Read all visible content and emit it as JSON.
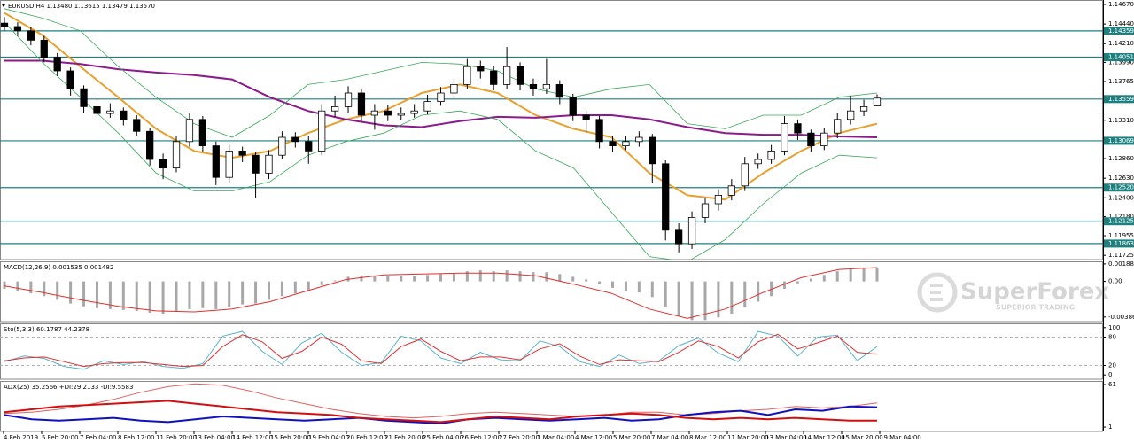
{
  "chart_data": [
    {
      "type": "candlestick",
      "title": "EURUSD,H4  1.13480 1.13615 1.13479 1.13570",
      "ylim": [
        1.116748,
        1.14722
      ],
      "yticks": [
        {
          "value": 1.1467,
          "label": "1.14670"
        },
        {
          "value": 1.1444,
          "label": "1.14440"
        },
        {
          "value": 1.1421,
          "label": "1.14210"
        },
        {
          "value": 1.1399,
          "label": "1.13990"
        },
        1.13765,
        {
          "value": 1.1331,
          "label": "1.13310"
        },
        {
          "value": 1.1286,
          "label": "1.12860"
        },
        {
          "value": 1.1263,
          "label": "1.12630"
        },
        {
          "value": 1.124,
          "label": "1.12400"
        },
        {
          "value": 1.1218,
          "label": "1.12180"
        },
        1.11955,
        1.11725
      ],
      "levels": [
        1.14359,
        1.14051,
        1.13559,
        1.13069,
        {
          "value": 1.1252,
          "label": "1.12520"
        },
        1.12125,
        1.11863
      ],
      "level_color": "#1f7f7f",
      "open": [
        1.1445,
        1.1441,
        1.1436,
        1.1425,
        1.1405,
        1.1389,
        1.1368,
        1.1347,
        1.1339,
        1.1342,
        1.1332,
        1.1318,
        1.1285,
        1.1275,
        1.1306,
        1.1332,
        1.1301,
        1.1264,
        1.1295,
        1.129,
        1.1269,
        1.129,
        1.1311,
        1.1306,
        1.1295,
        1.1342,
        1.1347,
        1.1363,
        1.1337,
        1.1342,
        1.1337,
        1.1339,
        1.1342,
        1.1353,
        1.1363,
        1.1373,
        1.1394,
        1.1389,
        1.1373,
        1.1394,
        1.1373,
        1.1368,
        1.1373,
        1.1358,
        1.1337,
        1.1332,
        1.1306,
        1.1301,
        1.1306,
        1.1311,
        1.128,
        1.1202,
        1.1186,
        1.1217,
        1.1233,
        1.1243,
        1.1254,
        1.128,
        1.1285,
        1.1295,
        1.1327,
        1.1316,
        1.1301,
        1.1316,
        1.1332,
        1.1342,
        1.1348
      ],
      "high": [
        1.1452,
        1.1446,
        1.144,
        1.143,
        1.141,
        1.1393,
        1.1372,
        1.1358,
        1.1351,
        1.1346,
        1.1337,
        1.1322,
        1.1292,
        1.1312,
        1.134,
        1.1336,
        1.1306,
        1.1302,
        1.13,
        1.1294,
        1.1296,
        1.1318,
        1.1317,
        1.1312,
        1.135,
        1.136,
        1.1371,
        1.1368,
        1.135,
        1.1349,
        1.1346,
        1.135,
        1.1361,
        1.137,
        1.138,
        1.1403,
        1.1401,
        1.1395,
        1.1417,
        1.1399,
        1.138,
        1.1403,
        1.1378,
        1.1362,
        1.1342,
        1.1336,
        1.1312,
        1.1313,
        1.1318,
        1.1315,
        1.1284,
        1.121,
        1.1224,
        1.124,
        1.125,
        1.1262,
        1.1288,
        1.1292,
        1.1302,
        1.1336,
        1.1332,
        1.132,
        1.1322,
        1.134,
        1.136,
        1.1355,
        1.13615
      ],
      "low": [
        1.1436,
        1.143,
        1.1419,
        1.1399,
        1.1383,
        1.136,
        1.134,
        1.1333,
        1.1334,
        1.1325,
        1.1312,
        1.1278,
        1.1262,
        1.127,
        1.13,
        1.1294,
        1.1255,
        1.1258,
        1.1282,
        1.124,
        1.1262,
        1.1285,
        1.1299,
        1.128,
        1.129,
        1.1335,
        1.134,
        1.133,
        1.132,
        1.133,
        1.1331,
        1.1334,
        1.1338,
        1.1348,
        1.1357,
        1.1368,
        1.138,
        1.1366,
        1.1368,
        1.1366,
        1.136,
        1.1362,
        1.135,
        1.133,
        1.1316,
        1.1298,
        1.1294,
        1.1296,
        1.13,
        1.1258,
        1.119,
        1.1176,
        1.118,
        1.121,
        1.1225,
        1.1237,
        1.1248,
        1.1274,
        1.128,
        1.129,
        1.1308,
        1.1294,
        1.1296,
        1.131,
        1.1326,
        1.1336,
        1.13479
      ],
      "close": [
        1.1441,
        1.1436,
        1.1425,
        1.1405,
        1.1389,
        1.1368,
        1.1347,
        1.1339,
        1.1342,
        1.1332,
        1.1318,
        1.1285,
        1.1275,
        1.1306,
        1.1332,
        1.1301,
        1.1264,
        1.1295,
        1.129,
        1.1269,
        1.129,
        1.1311,
        1.1306,
        1.1295,
        1.1342,
        1.1347,
        1.1363,
        1.1337,
        1.1342,
        1.1337,
        1.1339,
        1.1342,
        1.1353,
        1.1363,
        1.1373,
        1.1394,
        1.1389,
        1.1373,
        1.1394,
        1.1373,
        1.1368,
        1.1373,
        1.1358,
        1.1337,
        1.1332,
        1.1306,
        1.1301,
        1.1306,
        1.1311,
        1.128,
        1.1202,
        1.1186,
        1.1217,
        1.1233,
        1.1243,
        1.1254,
        1.128,
        1.1285,
        1.1295,
        1.1327,
        1.1316,
        1.1301,
        1.1316,
        1.1332,
        1.1342,
        1.1347,
        1.1357
      ],
      "series": [
        {
          "color": "#e8a030",
          "width": 2,
          "values": [
            1.1457,
            1.1431,
            1.1394,
            1.1358,
            1.1321,
            1.1295,
            1.1287,
            1.1295,
            1.1316,
            1.1332,
            1.1342,
            1.1363,
            1.1373,
            1.1363,
            1.1337,
            1.1321,
            1.1311,
            1.1269,
            1.1243,
            1.1238,
            1.1269,
            1.1295,
            1.1316,
            1.1327
          ]
        },
        {
          "color": "#8b1a8b",
          "width": 2,
          "values": [
            1.1401,
            1.1401,
            1.1397,
            1.1391,
            1.1387,
            1.1384,
            1.1379,
            1.1358,
            1.1342,
            1.1332,
            1.1325,
            1.1323,
            1.133,
            1.1335,
            1.1334,
            1.1337,
            1.1337,
            1.1332,
            1.1323,
            1.1316,
            1.1314,
            1.1314,
            1.1312,
            1.1311
          ]
        },
        {
          "color": "#3aa85a",
          "width": 0.8,
          "values": [
            1.1462,
            1.1451,
            1.1436,
            1.1394,
            1.1358,
            1.1327,
            1.1311,
            1.1337,
            1.1373,
            1.1379,
            1.1389,
            1.1399,
            1.1397,
            1.1389,
            1.1368,
            1.1358,
            1.1368,
            1.1373,
            1.1327,
            1.1321,
            1.1337,
            1.1337,
            1.1358,
            1.1363
          ]
        },
        {
          "color": "#3aa85a",
          "width": 0.8,
          "values": [
            1.1446,
            1.1399,
            1.1358,
            1.1316,
            1.1269,
            1.1248,
            1.1248,
            1.1259,
            1.129,
            1.1306,
            1.1316,
            1.1337,
            1.1342,
            1.1332,
            1.1295,
            1.1275,
            1.1223,
            1.1171,
            1.1165,
            1.1191,
            1.1233,
            1.1269,
            1.129,
            1.1287
          ]
        }
      ]
    },
    {
      "type": "bar",
      "title": "MACD(12,26,9) 0.001535 0.001482",
      "ylim": [
        -0.00436,
        0.00217
      ],
      "yticks": [
        0.001888,
        {
          "value": 0,
          "label": "0.00"
        },
        -0.003864
      ],
      "color": "#a8a8a8",
      "values": [
        -0.0008,
        -0.001,
        -0.0013,
        -0.0016,
        -0.002,
        -0.0024,
        -0.0027,
        -0.0029,
        -0.003,
        -0.0031,
        -0.0032,
        -0.0034,
        -0.0035,
        -0.0033,
        -0.003,
        -0.0029,
        -0.003,
        -0.0028,
        -0.0025,
        -0.0024,
        -0.002,
        -0.0016,
        -0.0013,
        -0.001,
        -0.0004,
        0.0001,
        0.0005,
        0.0006,
        0.0006,
        0.0006,
        0.0006,
        0.0006,
        0.0007,
        0.0008,
        0.0009,
        0.0011,
        0.0012,
        0.0011,
        0.0012,
        0.0011,
        0.001,
        0.001,
        0.0008,
        0.0005,
        0.0002,
        -0.0003,
        -0.0007,
        -0.001,
        -0.0012,
        -0.0017,
        -0.0028,
        -0.0038,
        -0.0042,
        -0.0042,
        -0.0039,
        -0.0035,
        -0.0028,
        -0.0022,
        -0.0016,
        -0.0008,
        -0.0002,
        0.0003,
        0.0007,
        0.0011,
        0.0014,
        0.0015,
        0.0015
      ],
      "series": [
        {
          "color": "#e03030",
          "width": 1,
          "values": [
            -0.0005,
            -0.0012,
            -0.002,
            -0.0027,
            -0.0032,
            -0.0033,
            -0.003,
            -0.0022,
            -0.001,
            0.0002,
            0.0007,
            0.0008,
            0.0009,
            0.0009,
            0.0006,
            -0.0003,
            -0.0013,
            -0.003,
            -0.004,
            -0.003,
            -0.0012,
            0.0004,
            0.0013,
            0.0015
          ]
        }
      ]
    },
    {
      "type": "line",
      "title": "Sto(5,3,3) 60.1787 44.2378",
      "ylim": [
        -9,
        109
      ],
      "yticks": [
        100,
        80,
        20,
        0
      ],
      "levels": [
        80,
        20
      ],
      "level_color": "#b0b0b0",
      "series": [
        {
          "color": "#5ab4c8",
          "width": 1,
          "values": [
            28,
            40,
            35,
            18,
            12,
            30,
            22,
            28,
            18,
            14,
            24,
            82,
            92,
            50,
            22,
            68,
            88,
            48,
            20,
            26,
            82,
            72,
            36,
            24,
            48,
            32,
            30,
            72,
            60,
            28,
            18,
            42,
            24,
            30,
            62,
            78,
            46,
            28,
            92,
            82,
            40,
            80,
            84,
            30,
            60
          ]
        },
        {
          "color": "#e03030",
          "width": 1,
          "values": [
            30,
            36,
            38,
            28,
            18,
            24,
            26,
            26,
            22,
            18,
            20,
            60,
            85,
            70,
            35,
            50,
            80,
            65,
            30,
            24,
            60,
            76,
            50,
            30,
            38,
            38,
            32,
            55,
            66,
            40,
            22,
            32,
            30,
            28,
            48,
            72,
            60,
            36,
            70,
            86,
            55,
            68,
            82,
            48,
            44
          ]
        }
      ]
    },
    {
      "type": "line",
      "title": "ADX(25) 35.2566 +DI:29.2133 -DI:9.5583",
      "ylim": [
        -5.2,
        66
      ],
      "yticks": [
        61,
        1
      ],
      "series": [
        {
          "color": "#e06060",
          "width": 1,
          "values": [
            20,
            22,
            26,
            32,
            40,
            50,
            58,
            62,
            60,
            52,
            42,
            34,
            26,
            20,
            16,
            14,
            16,
            20,
            22,
            20,
            18,
            16,
            18,
            22,
            22,
            18,
            20,
            24,
            26,
            30,
            28,
            30,
            35
          ]
        },
        {
          "color": "#1010c0",
          "width": 2,
          "values": [
            18,
            12,
            10,
            12,
            14,
            10,
            8,
            12,
            16,
            14,
            12,
            10,
            12,
            14,
            10,
            8,
            6,
            12,
            14,
            12,
            10,
            12,
            14,
            10,
            12,
            18,
            22,
            24,
            18,
            26,
            24,
            30,
            29
          ]
        },
        {
          "color": "#d01010",
          "width": 2,
          "values": [
            22,
            26,
            30,
            32,
            34,
            36,
            38,
            34,
            30,
            26,
            22,
            20,
            18,
            14,
            12,
            10,
            8,
            12,
            16,
            14,
            12,
            16,
            18,
            20,
            18,
            14,
            12,
            14,
            12,
            14,
            12,
            10,
            10
          ]
        }
      ]
    }
  ],
  "time_axis": [
    "4 Feb 2019",
    "5 Feb 20:00",
    "7 Feb 04:00",
    "8 Feb 12:00",
    "11 Feb 20:00",
    "13 Feb 04:00",
    "14 Feb 12:00",
    "15 Feb 20:00",
    "19 Feb 04:00",
    "20 Feb 12:00",
    "21 Feb 20:00",
    "25 Feb 04:00",
    "26 Feb 12:00",
    "27 Feb 20:00",
    "1 Mar 04:00",
    "4 Mar 12:00",
    "5 Mar 20:00",
    "7 Mar 04:00",
    "8 Mar 12:00",
    "11 Mar 20:00",
    "13 Mar 04:00",
    "14 Mar 12:00",
    "15 Mar 20:00",
    "19 Mar 04:00"
  ],
  "watermark": {
    "brand": "SuperForex",
    "tagline": "SUPERIOR TRADING"
  }
}
